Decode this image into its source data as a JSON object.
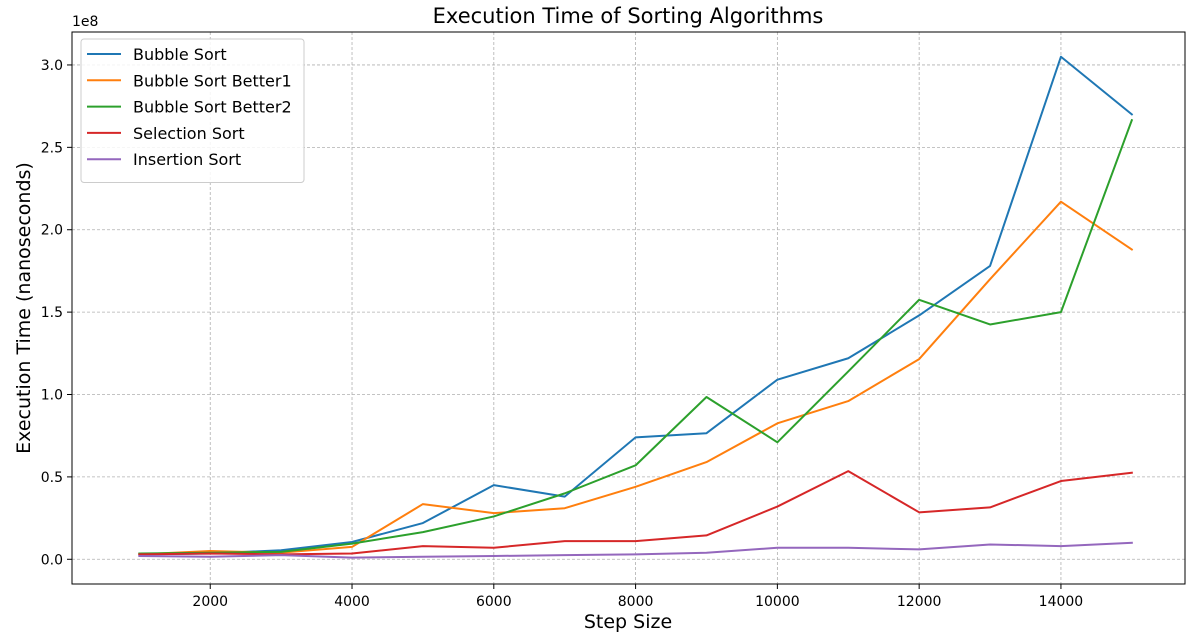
{
  "chart_data": {
    "type": "line",
    "title": "Execution Time of Sorting Algorithms",
    "xlabel": "Step Size",
    "ylabel": "Execution Time (nanoseconds)",
    "y_offset_text": "1e8",
    "x": [
      1000,
      2000,
      3000,
      4000,
      5000,
      6000,
      7000,
      8000,
      9000,
      10000,
      11000,
      12000,
      13000,
      14000,
      15000
    ],
    "xlim": [
      50,
      15750
    ],
    "ylim": [
      -15000000,
      320000000
    ],
    "x_ticks": [
      2000,
      4000,
      6000,
      8000,
      10000,
      12000,
      14000
    ],
    "x_tick_labels": [
      "2000",
      "4000",
      "6000",
      "8000",
      "10000",
      "12000",
      "14000"
    ],
    "y_ticks": [
      0,
      50000000,
      100000000,
      150000000,
      200000000,
      250000000,
      300000000
    ],
    "y_tick_labels": [
      "0.0",
      "0.5",
      "1.0",
      "1.5",
      "2.0",
      "2.5",
      "3.0"
    ],
    "grid": true,
    "legend_position": "top-left",
    "series": [
      {
        "name": "Bubble Sort",
        "color": "#1f77b4",
        "values": [
          3000000,
          3500000,
          5500000,
          10500000,
          22000000,
          45000000,
          38000000,
          74000000,
          76500000,
          109000000,
          122000000,
          148000000,
          178000000,
          305000000,
          270000000
        ]
      },
      {
        "name": "Bubble Sort Better1",
        "color": "#ff7f0e",
        "values": [
          3000000,
          5000000,
          4000000,
          7500000,
          33500000,
          28000000,
          31000000,
          44000000,
          59000000,
          82500000,
          96000000,
          121500000,
          170000000,
          217000000,
          188000000
        ]
      },
      {
        "name": "Bubble Sort Better2",
        "color": "#2ca02c",
        "values": [
          3500000,
          4000000,
          4500000,
          9500000,
          16500000,
          26000000,
          40000000,
          57000000,
          98500000,
          71000000,
          114000000,
          157500000,
          142500000,
          150000000,
          266500000
        ]
      },
      {
        "name": "Selection Sort",
        "color": "#d62728",
        "values": [
          3000000,
          3500000,
          3000000,
          3500000,
          8000000,
          7000000,
          11000000,
          11000000,
          14500000,
          32000000,
          53500000,
          28500000,
          31500000,
          47500000,
          52500000
        ]
      },
      {
        "name": "Insertion Sort",
        "color": "#9467bd",
        "values": [
          2000000,
          1500000,
          2500000,
          1000000,
          1500000,
          2000000,
          2500000,
          3000000,
          4000000,
          7000000,
          7000000,
          6000000,
          9000000,
          8000000,
          10000000
        ]
      }
    ]
  }
}
